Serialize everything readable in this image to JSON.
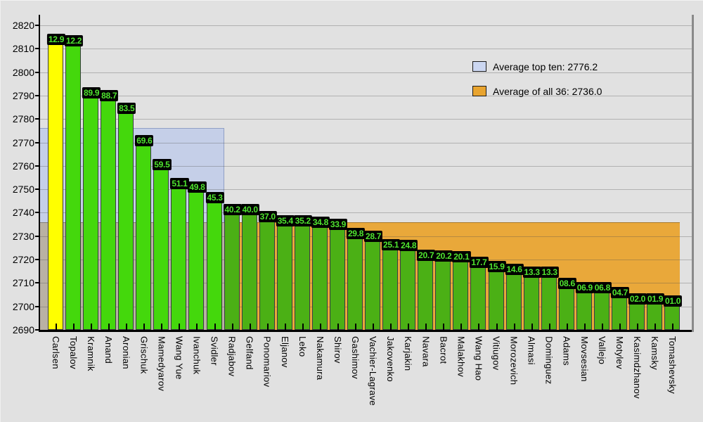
{
  "colors": {
    "background": "#e1e1e1",
    "bar_yellow": "#ffff00",
    "bar_green_top": "#44d80c",
    "bar_green_rest": "#4bb015",
    "bar_border": "#3a3d42",
    "value_label_bg": "#000000",
    "value_label_text": "#4fe42f",
    "region_top_ten": "#c5cfe8",
    "region_top_ten_border": "#90a0c4",
    "region_overlap": "#b9b1a4",
    "region_all_avg": "#e9a83a",
    "legend_swatch_top_ten": "#ccd7f1",
    "legend_swatch_all": "#e8a42f"
  },
  "legend": [
    {
      "id": "top_ten",
      "label": "Average top ten: 2776.2",
      "value": 2776.2
    },
    {
      "id": "all_36",
      "label": "Average of all 36: 2736.0",
      "value": 2736.0
    }
  ],
  "chart_data": {
    "type": "bar",
    "title": "",
    "xlabel": "",
    "ylabel": "",
    "ylim": [
      2690,
      2820
    ],
    "ytick_step": 10,
    "grid": true,
    "legend_position": "top-right",
    "x_label_rotation": 90,
    "averages": {
      "top_ten": 2776.2,
      "all_36": 2736.0
    },
    "highlight_regions": [
      {
        "name": "average-top-ten",
        "value": 2776.2,
        "covers_bars": "1-10"
      },
      {
        "name": "average-of-all-36",
        "value": 2736.0,
        "covers_bars": "11-36"
      }
    ],
    "players": [
      {
        "name": "Carlsen",
        "rating": 2812.9,
        "value_label": "12.9",
        "group": "highlight"
      },
      {
        "name": "Topalov",
        "rating": 2812.2,
        "value_label": "12.2",
        "group": "top10"
      },
      {
        "name": "Kramnik",
        "rating": 2789.9,
        "value_label": "89.9",
        "group": "top10"
      },
      {
        "name": "Anand",
        "rating": 2788.7,
        "value_label": "88.7",
        "group": "top10"
      },
      {
        "name": "Aronian",
        "rating": 2783.5,
        "value_label": "83.5",
        "group": "top10"
      },
      {
        "name": "Grischuk",
        "rating": 2769.6,
        "value_label": "69.6",
        "group": "top10"
      },
      {
        "name": "Mamedyarov",
        "rating": 2759.5,
        "value_label": "59.5",
        "group": "top10"
      },
      {
        "name": "Wang Yue",
        "rating": 2751.1,
        "value_label": "51.1",
        "group": "top10"
      },
      {
        "name": "Ivanchuk",
        "rating": 2749.8,
        "value_label": "49.8",
        "group": "top10"
      },
      {
        "name": "Svidler",
        "rating": 2745.3,
        "value_label": "45.3",
        "group": "top10"
      },
      {
        "name": "Radjabov",
        "rating": 2740.2,
        "value_label": "40.2",
        "group": "rest"
      },
      {
        "name": "Gelfand",
        "rating": 2740.0,
        "value_label": "40.0",
        "group": "rest"
      },
      {
        "name": "Ponomariov",
        "rating": 2737.0,
        "value_label": "37.0",
        "group": "rest"
      },
      {
        "name": "Eljanov",
        "rating": 2735.4,
        "value_label": "35.4",
        "group": "rest"
      },
      {
        "name": "Leko",
        "rating": 2735.2,
        "value_label": "35.2",
        "group": "rest"
      },
      {
        "name": "Nakamura",
        "rating": 2734.8,
        "value_label": "34.8",
        "group": "rest"
      },
      {
        "name": "Shirov",
        "rating": 2733.9,
        "value_label": "33.9",
        "group": "rest"
      },
      {
        "name": "Gashimov",
        "rating": 2729.8,
        "value_label": "29.8",
        "group": "rest"
      },
      {
        "name": "Vachier-Lagrave",
        "rating": 2728.7,
        "value_label": "28.7",
        "group": "rest"
      },
      {
        "name": "Jakovenko",
        "rating": 2725.1,
        "value_label": "25.1",
        "group": "rest"
      },
      {
        "name": "Karjakin",
        "rating": 2724.8,
        "value_label": "24.8",
        "group": "rest"
      },
      {
        "name": "Navara",
        "rating": 2720.7,
        "value_label": "20.7",
        "group": "rest"
      },
      {
        "name": "Bacrot",
        "rating": 2720.2,
        "value_label": "20.2",
        "group": "rest"
      },
      {
        "name": "Malakhov",
        "rating": 2720.1,
        "value_label": "20.1",
        "group": "rest"
      },
      {
        "name": "Wang Hao",
        "rating": 2717.7,
        "value_label": "17.7",
        "group": "rest"
      },
      {
        "name": "Vitiugov",
        "rating": 2715.9,
        "value_label": "15.9",
        "group": "rest"
      },
      {
        "name": "Morozevich",
        "rating": 2714.6,
        "value_label": "14.6",
        "group": "rest"
      },
      {
        "name": "Almasi",
        "rating": 2713.3,
        "value_label": "13.3",
        "group": "rest"
      },
      {
        "name": "Dominguez",
        "rating": 2713.3,
        "value_label": "13.3",
        "group": "rest"
      },
      {
        "name": "Adams",
        "rating": 2708.6,
        "value_label": "08.6",
        "group": "rest"
      },
      {
        "name": "Movsesian",
        "rating": 2706.9,
        "value_label": "06.9",
        "group": "rest"
      },
      {
        "name": "Vallejo",
        "rating": 2706.8,
        "value_label": "06.8",
        "group": "rest"
      },
      {
        "name": "Motylev",
        "rating": 2704.7,
        "value_label": "04.7",
        "group": "rest"
      },
      {
        "name": "Kasimdzhanov",
        "rating": 2702.0,
        "value_label": "02.0",
        "group": "rest"
      },
      {
        "name": "Kamsky",
        "rating": 2701.9,
        "value_label": "01.9",
        "group": "rest"
      },
      {
        "name": "Tomashevsky",
        "rating": 2701.0,
        "value_label": "01.0",
        "group": "rest"
      }
    ]
  }
}
